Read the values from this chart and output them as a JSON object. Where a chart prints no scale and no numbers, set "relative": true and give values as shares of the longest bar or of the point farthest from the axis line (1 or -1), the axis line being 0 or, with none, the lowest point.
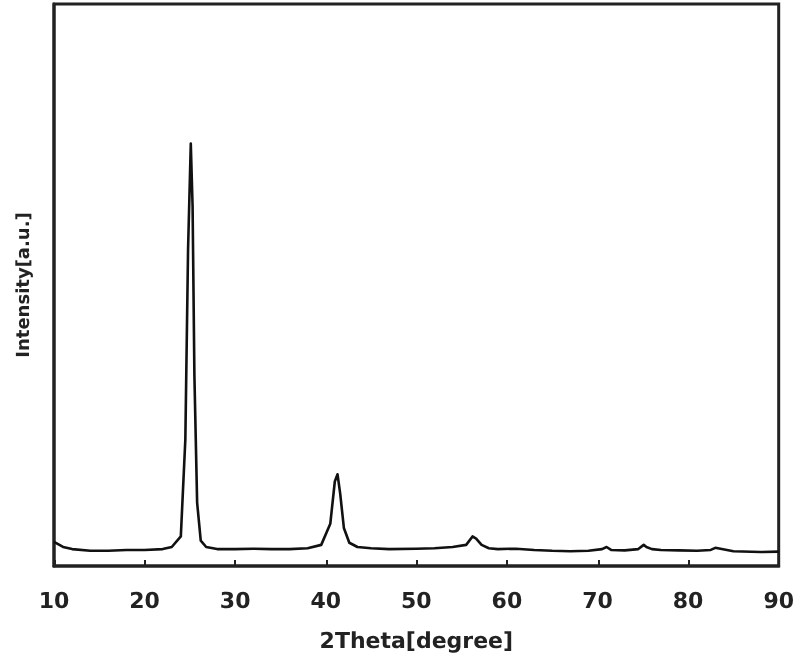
{
  "chart_data": {
    "type": "line",
    "xlabel": "2Theta[degree]",
    "ylabel": "Intensity[a.u.]",
    "relative": true,
    "xlim": [
      10,
      90
    ],
    "xticks": [
      10,
      20,
      30,
      40,
      50,
      60,
      70,
      80,
      90
    ],
    "grid": false,
    "marker": "none",
    "line_style": "solid",
    "series": [
      {
        "color": "#111111",
        "x": [
          10,
          11,
          12,
          14,
          16,
          18,
          20,
          22,
          23,
          24,
          24.5,
          24.8,
          25.1,
          25.3,
          25.5,
          25.8,
          26.2,
          26.8,
          28,
          30,
          32,
          34,
          36,
          38,
          39.5,
          40.5,
          41,
          41.3,
          41.6,
          42,
          42.6,
          43.5,
          45,
          47,
          50,
          52,
          54,
          55.5,
          56.2,
          56.6,
          57.2,
          58,
          59,
          61,
          63,
          65,
          67,
          69,
          70.5,
          71,
          71.5,
          73,
          74.5,
          75.1,
          75.4,
          76,
          77,
          79,
          81,
          82.5,
          83,
          85,
          88,
          90
        ],
        "values": [
          0.057,
          0.045,
          0.04,
          0.036,
          0.036,
          0.038,
          0.038,
          0.04,
          0.045,
          0.07,
          0.3,
          0.75,
          1,
          0.85,
          0.45,
          0.15,
          0.06,
          0.045,
          0.04,
          0.04,
          0.041,
          0.04,
          0.04,
          0.042,
          0.05,
          0.1,
          0.2,
          0.217,
          0.17,
          0.09,
          0.055,
          0.045,
          0.042,
          0.04,
          0.041,
          0.042,
          0.045,
          0.05,
          0.07,
          0.065,
          0.05,
          0.042,
          0.04,
          0.041,
          0.038,
          0.036,
          0.035,
          0.036,
          0.04,
          0.045,
          0.038,
          0.037,
          0.04,
          0.05,
          0.045,
          0.04,
          0.038,
          0.037,
          0.036,
          0.038,
          0.043,
          0.035,
          0.033,
          0.034
        ]
      }
    ]
  }
}
